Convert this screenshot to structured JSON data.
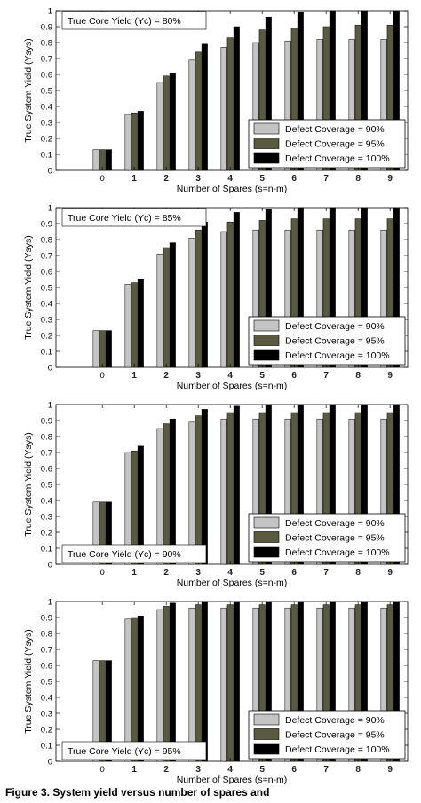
{
  "caption": "Figure 3. System yield versus number of spares and",
  "chart_data": [
    {
      "type": "bar",
      "annotation": "True Core Yield (Yc) = 80%",
      "xlabel": "Number of Spares (s=n-m)",
      "ylabel": "True System Yield (Ysys)",
      "ylim": [
        0,
        1
      ],
      "yticks": [
        "0",
        "0.1",
        "0.2",
        "0.3",
        "0.4",
        "0.5",
        "0.6",
        "0.7",
        "0.8",
        "0.9",
        "1"
      ],
      "categories": [
        "0",
        "1",
        "2",
        "3",
        "4",
        "5",
        "6",
        "7",
        "8",
        "9"
      ],
      "legend_position": "bottom-right",
      "series": [
        {
          "name": "Defect Coverage = 90%",
          "color": "#c4c4c4",
          "values": [
            0.13,
            0.35,
            0.55,
            0.69,
            0.77,
            0.8,
            0.81,
            0.82,
            0.82,
            0.82
          ]
        },
        {
          "name": "Defect Coverage = 95%",
          "color": "#5a5a40",
          "values": [
            0.13,
            0.36,
            0.59,
            0.74,
            0.83,
            0.88,
            0.89,
            0.9,
            0.91,
            0.91
          ]
        },
        {
          "name": "Defect Coverage = 100%",
          "color": "#000000",
          "values": [
            0.13,
            0.37,
            0.61,
            0.79,
            0.9,
            0.96,
            0.99,
            1.0,
            1.0,
            1.0
          ]
        }
      ]
    },
    {
      "type": "bar",
      "annotation": "True Core Yield (Yc) = 85%",
      "xlabel": "Number of Spares (s=n-m)",
      "ylabel": "True System Yield (Ysys)",
      "ylim": [
        0,
        1
      ],
      "yticks": [
        "0",
        "0.1",
        "0.2",
        "0.3",
        "0.4",
        "0.5",
        "0.6",
        "0.7",
        "0.8",
        "0.9",
        "1"
      ],
      "categories": [
        "0",
        "1",
        "2",
        "3",
        "4",
        "5",
        "6",
        "7",
        "8",
        "9"
      ],
      "legend_position": "bottom-right",
      "series": [
        {
          "name": "Defect Coverage = 90%",
          "color": "#c4c4c4",
          "values": [
            0.23,
            0.52,
            0.71,
            0.81,
            0.85,
            0.86,
            0.86,
            0.86,
            0.86,
            0.86
          ]
        },
        {
          "name": "Defect Coverage = 95%",
          "color": "#5a5a40",
          "values": [
            0.23,
            0.53,
            0.75,
            0.86,
            0.91,
            0.92,
            0.93,
            0.93,
            0.93,
            0.93
          ]
        },
        {
          "name": "Defect Coverage = 100%",
          "color": "#000000",
          "values": [
            0.23,
            0.55,
            0.78,
            0.91,
            0.97,
            0.99,
            1.0,
            1.0,
            1.0,
            1.0
          ]
        }
      ]
    },
    {
      "type": "bar",
      "annotation": "True Core Yield (Yc) = 90%",
      "xlabel": "Number of Spares (s=n-m)",
      "ylabel": "True System Yield (Ysys)",
      "ylim": [
        0,
        1
      ],
      "yticks": [
        "0",
        "0.1",
        "0.2",
        "0.3",
        "0.4",
        "0.5",
        "0.6",
        "0.7",
        "0.8",
        "0.9",
        "1"
      ],
      "categories": [
        "0",
        "1",
        "2",
        "3",
        "4",
        "5",
        "6",
        "7",
        "8",
        "9"
      ],
      "legend_position": "bottom-right",
      "series": [
        {
          "name": "Defect Coverage = 90%",
          "color": "#c4c4c4",
          "values": [
            0.39,
            0.7,
            0.85,
            0.89,
            0.91,
            0.91,
            0.91,
            0.91,
            0.91,
            0.91
          ]
        },
        {
          "name": "Defect Coverage = 95%",
          "color": "#5a5a40",
          "values": [
            0.39,
            0.71,
            0.88,
            0.93,
            0.95,
            0.95,
            0.95,
            0.95,
            0.95,
            0.95
          ]
        },
        {
          "name": "Defect Coverage = 100%",
          "color": "#000000",
          "values": [
            0.39,
            0.74,
            0.91,
            0.97,
            0.99,
            1.0,
            1.0,
            1.0,
            1.0,
            1.0
          ]
        }
      ]
    },
    {
      "type": "bar",
      "annotation": "True Core Yield (Yc) = 95%",
      "xlabel": "Number of Spares (s=n-m)",
      "ylabel": "True System Yield (Ysys)",
      "ylim": [
        0,
        1
      ],
      "yticks": [
        "0",
        "0.1",
        "0.2",
        "0.3",
        "0.4",
        "0.5",
        "0.6",
        "0.7",
        "0.8",
        "0.9",
        "1"
      ],
      "categories": [
        "0",
        "1",
        "2",
        "3",
        "4",
        "5",
        "6",
        "7",
        "8",
        "9"
      ],
      "legend_position": "bottom-right",
      "series": [
        {
          "name": "Defect Coverage = 90%",
          "color": "#c4c4c4",
          "values": [
            0.63,
            0.89,
            0.95,
            0.96,
            0.96,
            0.96,
            0.96,
            0.96,
            0.96,
            0.96
          ]
        },
        {
          "name": "Defect Coverage = 95%",
          "color": "#5a5a40",
          "values": [
            0.63,
            0.9,
            0.97,
            0.98,
            0.98,
            0.98,
            0.98,
            0.98,
            0.98,
            0.98
          ]
        },
        {
          "name": "Defect Coverage = 100%",
          "color": "#000000",
          "values": [
            0.63,
            0.91,
            0.99,
            1.0,
            1.0,
            1.0,
            1.0,
            1.0,
            1.0,
            1.0
          ]
        }
      ]
    }
  ]
}
